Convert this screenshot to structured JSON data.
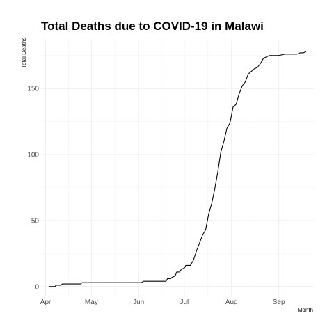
{
  "chart_data": {
    "type": "line",
    "title": "Total Deaths due to COVID-19 in Malawi",
    "xlabel": "Month",
    "ylabel": "Total Deaths",
    "x_ticks": [
      "Apr",
      "May",
      "Jun",
      "Jul",
      "Aug",
      "Sep"
    ],
    "y_ticks": [
      0,
      50,
      100,
      150
    ],
    "xlim": [
      "2020-03-29",
      "2020-09-24"
    ],
    "ylim": [
      -8,
      187
    ],
    "grid": true,
    "legend": "none",
    "series": [
      {
        "x": [
          "2020-04-03",
          "2020-04-07",
          "2020-04-08",
          "2020-04-11",
          "2020-04-12",
          "2020-04-15",
          "2020-04-16",
          "2020-04-24",
          "2020-04-25",
          "2020-05-05",
          "2020-05-06",
          "2020-06-03",
          "2020-06-04",
          "2020-06-15",
          "2020-06-16",
          "2020-06-19",
          "2020-06-20",
          "2020-06-22",
          "2020-06-23",
          "2020-06-25",
          "2020-06-26",
          "2020-06-28",
          "2020-06-29",
          "2020-07-01",
          "2020-07-02",
          "2020-07-05",
          "2020-07-07",
          "2020-07-09",
          "2020-07-11",
          "2020-07-13",
          "2020-07-15",
          "2020-07-17",
          "2020-07-19",
          "2020-07-21",
          "2020-07-23",
          "2020-07-25",
          "2020-07-27",
          "2020-07-29",
          "2020-07-31",
          "2020-08-02",
          "2020-08-04",
          "2020-08-06",
          "2020-08-08",
          "2020-08-10",
          "2020-08-12",
          "2020-08-14",
          "2020-08-16",
          "2020-08-18",
          "2020-08-20",
          "2020-08-22",
          "2020-08-24",
          "2020-08-26",
          "2020-08-28",
          "2020-08-30",
          "2020-09-01",
          "2020-09-05",
          "2020-09-07",
          "2020-09-13",
          "2020-09-15",
          "2020-09-17",
          "2020-09-19"
        ],
        "y": [
          0,
          0,
          1,
          1,
          2,
          2,
          2,
          2,
          3,
          3,
          3,
          3,
          4,
          4,
          4,
          4,
          6,
          6,
          7,
          8,
          11,
          11,
          13,
          14,
          16,
          16,
          20,
          27,
          33,
          39,
          43,
          55,
          63,
          74,
          87,
          102,
          110,
          120,
          124,
          136,
          138,
          146,
          152,
          155,
          161,
          163,
          165,
          166,
          169,
          173,
          174,
          175,
          175,
          175,
          175,
          176,
          176,
          176,
          177,
          177,
          178
        ]
      }
    ]
  }
}
